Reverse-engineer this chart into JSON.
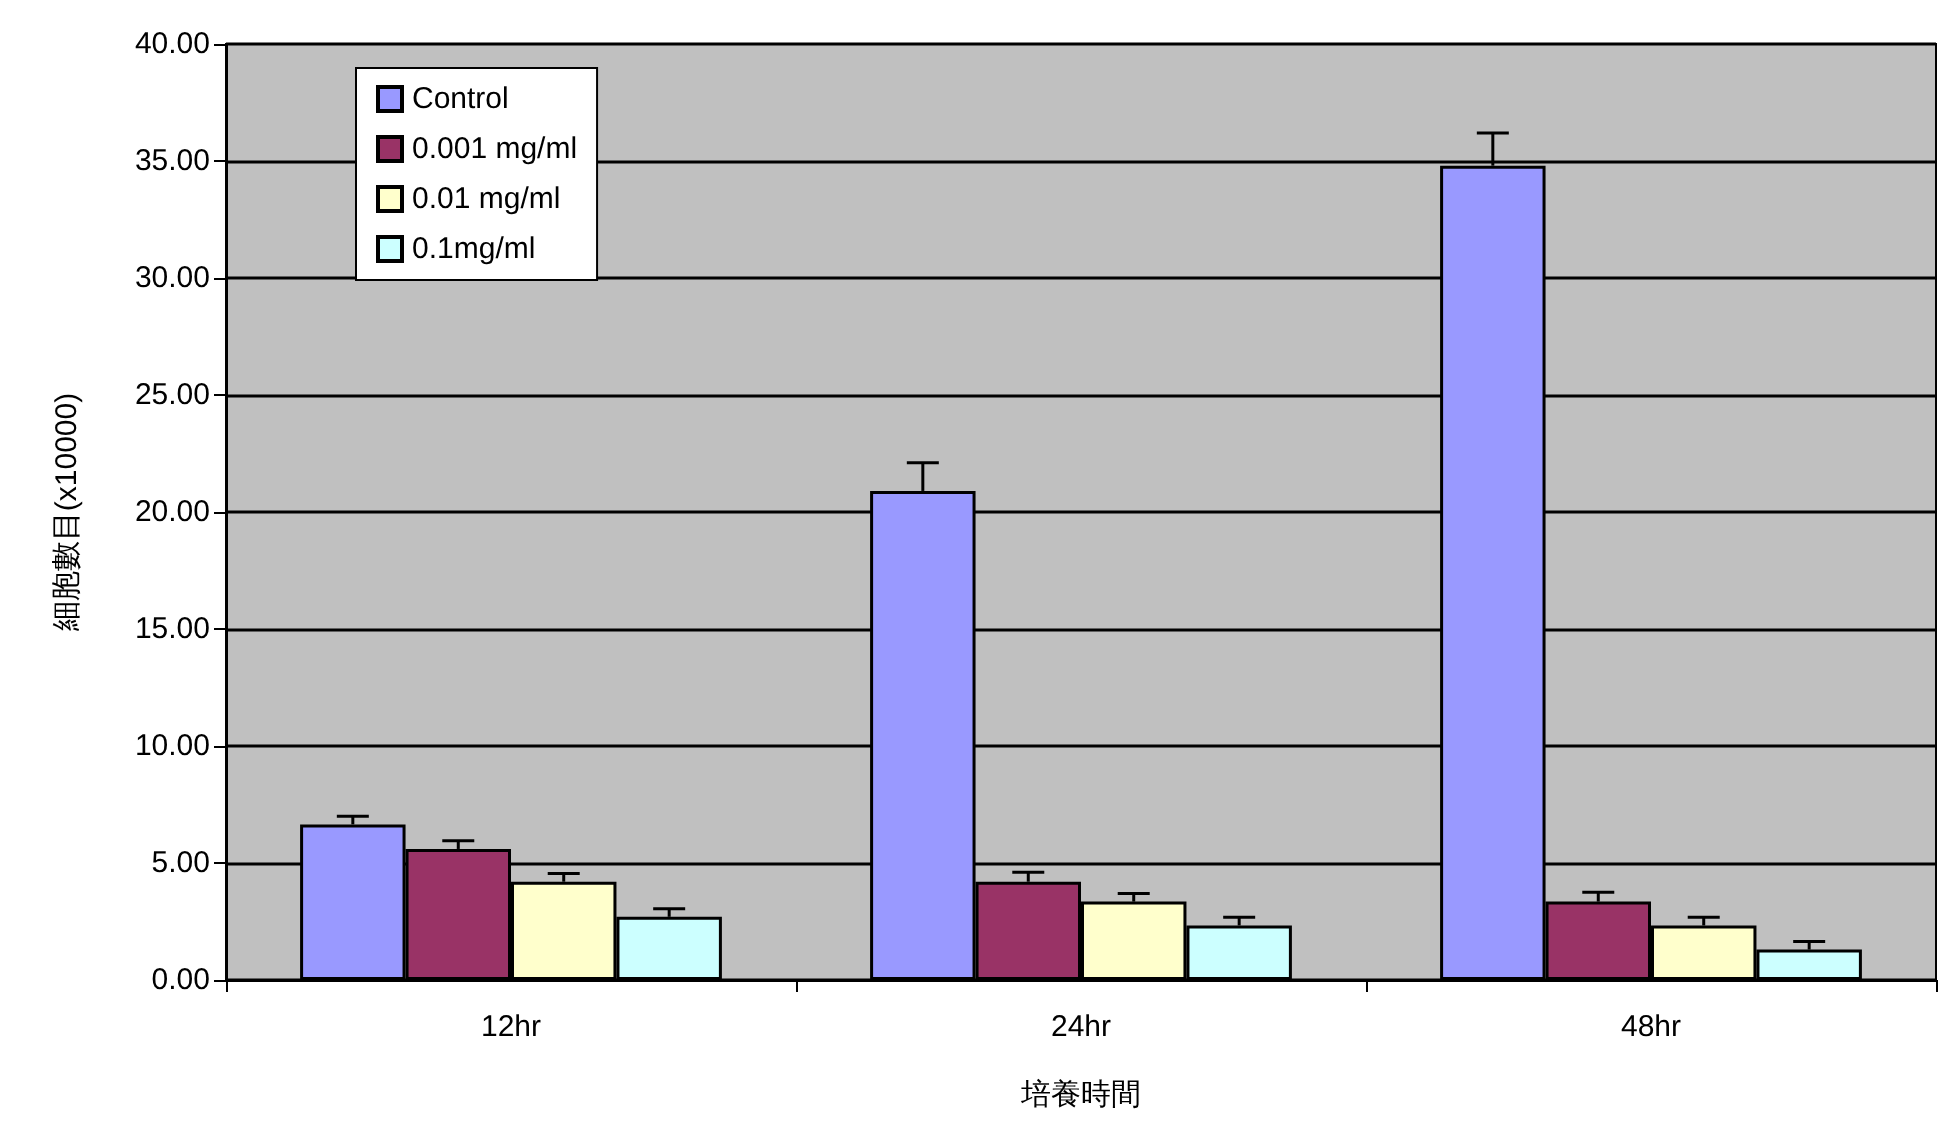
{
  "chart_data": {
    "type": "bar",
    "xlabel": "培養時間",
    "ylabel": "細胞數目(x10000)",
    "categories": [
      "12hr",
      "24hr",
      "48hr"
    ],
    "series": [
      {
        "name": "Control",
        "color": "#9999ff",
        "values": [
          6.65,
          20.9,
          34.8
        ],
        "errors": [
          [
            6.65,
            7.0
          ],
          [
            20.9,
            22.1
          ],
          [
            34.8,
            36.2
          ]
        ]
      },
      {
        "name": "0.001 mg/ml",
        "color": "#993366",
        "values": [
          5.6,
          4.2,
          3.35
        ],
        "errors": [
          [
            5.6,
            5.95
          ],
          [
            4.2,
            4.6
          ],
          [
            3.35,
            3.75
          ]
        ]
      },
      {
        "name": "0.01 mg/ml",
        "color": "#ffffcc",
        "values": [
          4.2,
          3.35,
          2.33
        ],
        "errors": [
          [
            4.2,
            4.55
          ],
          [
            3.35,
            3.7
          ],
          [
            2.33,
            2.68
          ]
        ]
      },
      {
        "name": "0.1mg/ml",
        "color": "#ccffff",
        "values": [
          2.7,
          2.33,
          1.3
        ],
        "errors": [
          [
            2.7,
            3.05
          ],
          [
            2.33,
            2.68
          ],
          [
            1.3,
            1.65
          ]
        ]
      }
    ],
    "ylim": [
      0,
      40
    ],
    "yticks": [
      {
        "value": 0,
        "label": "0.00"
      },
      {
        "value": 5,
        "label": "5.00"
      },
      {
        "value": 10,
        "label": "10.00"
      },
      {
        "value": 15,
        "label": "15.00"
      },
      {
        "value": 20,
        "label": "20.00"
      },
      {
        "value": 25,
        "label": "25.00"
      },
      {
        "value": 30,
        "label": "30.00"
      },
      {
        "value": 35,
        "label": "35.00"
      },
      {
        "value": 40,
        "label": "40.00"
      }
    ],
    "grid": "y",
    "legend": "top left"
  }
}
